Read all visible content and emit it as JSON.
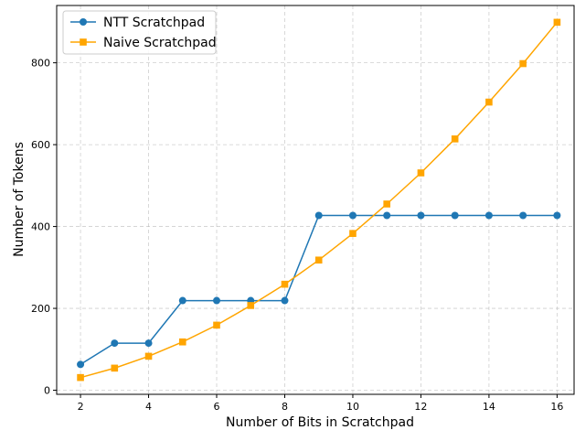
{
  "chart_data": {
    "type": "line",
    "title": "",
    "xlabel": "Number of Bits in Scratchpad",
    "ylabel": "Number of Tokens",
    "xlim": [
      1.3,
      16.5
    ],
    "ylim": [
      -10,
      940
    ],
    "xticks": [
      2,
      4,
      6,
      8,
      10,
      12,
      14,
      16
    ],
    "yticks": [
      0,
      200,
      400,
      600,
      800
    ],
    "grid": true,
    "legend_position": "top-left",
    "x": [
      2,
      3,
      4,
      5,
      6,
      7,
      8,
      9,
      10,
      11,
      12,
      13,
      14,
      15,
      16
    ],
    "series": [
      {
        "name": "NTT Scratchpad",
        "color": "#1f77b4",
        "marker": "circle",
        "values": [
          63,
          115,
          115,
          219,
          219,
          219,
          219,
          427,
          427,
          427,
          427,
          427,
          427,
          427,
          427
        ]
      },
      {
        "name": "Naive Scratchpad",
        "color": "#ffa500",
        "marker": "square",
        "values": [
          31,
          54,
          83,
          118,
          159,
          207,
          259,
          318,
          383,
          455,
          531,
          614,
          704,
          798,
          899
        ]
      }
    ]
  }
}
